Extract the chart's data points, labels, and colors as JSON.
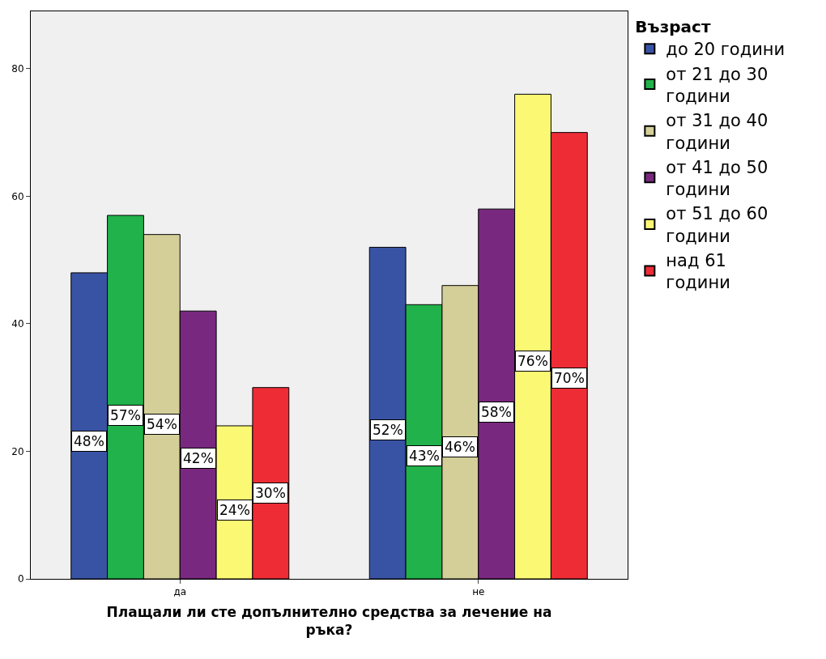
{
  "chart_data": {
    "type": "bar",
    "categories": [
      "да",
      "не"
    ],
    "xlabel": "Плащали ли сте допълнително средства за лечение на ръка?",
    "legend_title": "Възраст",
    "legend": "top right",
    "ylim": [
      0,
      89
    ],
    "yticks": [
      0,
      20,
      40,
      60,
      80
    ],
    "grid": false,
    "series": [
      {
        "name": "до 20 години",
        "color": "#3953a4",
        "values": [
          48,
          52
        ],
        "value_labels": [
          "48%",
          "52%"
        ]
      },
      {
        "name": "от 21 до 30 години",
        "color": "#21b24b",
        "values": [
          57,
          43
        ],
        "value_labels": [
          "57%",
          "43%"
        ]
      },
      {
        "name": "от 31 до 40 години",
        "color": "#d4cf98",
        "values": [
          54,
          46
        ],
        "value_labels": [
          "54%",
          "46%"
        ]
      },
      {
        "name": "от 41 до 50 години",
        "color": "#79287f",
        "values": [
          42,
          58
        ],
        "value_labels": [
          "42%",
          "58%"
        ]
      },
      {
        "name": "от 51 до 60 години",
        "color": "#fbf873",
        "values": [
          24,
          76
        ],
        "value_labels": [
          "24%",
          "76%"
        ]
      },
      {
        "name": "над 61 години",
        "color": "#ed2c36",
        "values": [
          30,
          70
        ],
        "value_labels": [
          "30%",
          "70%"
        ]
      }
    ]
  }
}
